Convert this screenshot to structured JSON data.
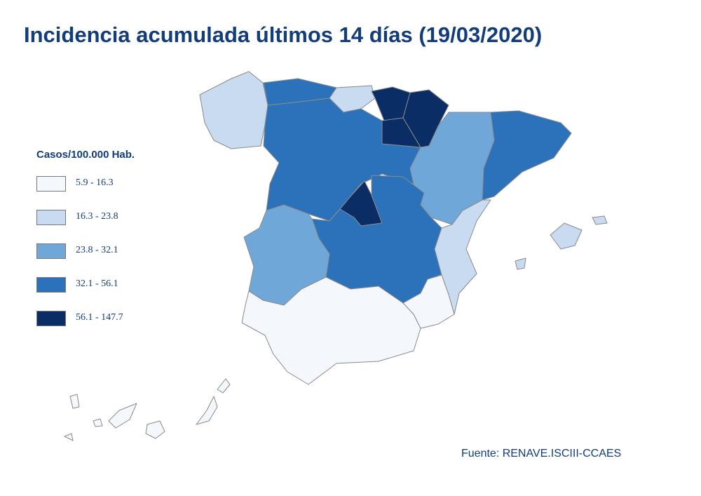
{
  "title": "Incidencia acumulada últimos 14 días (19/03/2020)",
  "legend": {
    "title": "Casos/100.000 Hab.",
    "items": [
      {
        "label": "5.9 - 16.3",
        "color": "#f4f8fd"
      },
      {
        "label": "16.3 - 23.8",
        "color": "#c8dbf0"
      },
      {
        "label": "23.8 - 32.1",
        "color": "#6fa8d8"
      },
      {
        "label": "32.1 - 56.1",
        "color": "#2b72bb"
      },
      {
        "label": "56.1 - 147.7",
        "color": "#0b2d66"
      }
    ]
  },
  "source": "Fuente: RENAVE.ISCIII-CCAES"
}
